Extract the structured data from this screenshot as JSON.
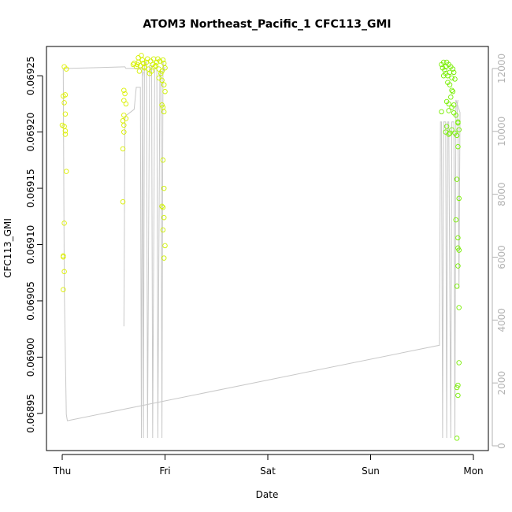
{
  "chart_data": {
    "type": "scatter",
    "title": "ATOM3 Northeast_Pacific_1 CFC113_GMI",
    "xlabel": "Date",
    "ylabel": "CFC113_GMI",
    "x_ticks": [
      "Thu",
      "Fri",
      "Sat",
      "Sun",
      "Mon"
    ],
    "xlim": [
      -0.05,
      4.1
    ],
    "ylim": [
      0.068917,
      0.069276
    ],
    "y_ticks": [
      0.06895,
      0.069,
      0.06905,
      0.0691,
      0.06915,
      0.0692,
      0.06925
    ],
    "y_tick_labels": [
      "0.06895",
      "0.06900",
      "0.06905",
      "0.06910",
      "0.06915",
      "0.06920",
      "0.06925"
    ],
    "y2lim": [
      -150,
      12700
    ],
    "y2_ticks": [
      0,
      2000,
      4000,
      6000,
      8000,
      10000,
      12000
    ],
    "colors": {
      "altitude_line": "#c8c8c8",
      "points_early": "#ddf000",
      "points_late": "#77ee00",
      "secondary_axis": "#b3b3b3"
    },
    "series": [
      {
        "kind": "points",
        "axis": "left",
        "points": [
          [
            0.02,
            0.069258
          ],
          [
            0.04,
            0.069256
          ],
          [
            0.03,
            0.069233
          ],
          [
            0.01,
            0.069232
          ],
          [
            0.02,
            0.069226
          ],
          [
            0.03,
            0.069216
          ],
          [
            0.0,
            0.069206
          ],
          [
            0.02,
            0.069205
          ],
          [
            0.03,
            0.069201
          ],
          [
            0.03,
            0.069198
          ],
          [
            0.04,
            0.069165
          ],
          [
            0.02,
            0.069119
          ],
          [
            0.01,
            0.06909
          ],
          [
            0.01,
            0.069089
          ],
          [
            0.02,
            0.069076
          ],
          [
            0.01,
            0.06906
          ],
          [
            0.6,
            0.069237
          ],
          [
            0.61,
            0.069234
          ],
          [
            0.6,
            0.069228
          ],
          [
            0.62,
            0.069225
          ],
          [
            0.6,
            0.069215
          ],
          [
            0.62,
            0.069212
          ],
          [
            0.59,
            0.06921
          ],
          [
            0.6,
            0.069206
          ],
          [
            0.6,
            0.0692
          ],
          [
            0.59,
            0.069185
          ],
          [
            0.59,
            0.069138
          ],
          [
            0.69,
            0.06926
          ],
          [
            0.7,
            0.069261
          ],
          [
            0.72,
            0.069258
          ],
          [
            0.73,
            0.06926
          ],
          [
            0.74,
            0.069262
          ],
          [
            0.76,
            0.069259
          ],
          [
            0.78,
            0.069264
          ],
          [
            0.79,
            0.069261
          ],
          [
            0.8,
            0.069258
          ],
          [
            0.82,
            0.069262
          ],
          [
            0.84,
            0.069256
          ],
          [
            0.86,
            0.069263
          ],
          [
            0.88,
            0.06926
          ],
          [
            0.9,
            0.069258
          ],
          [
            0.92,
            0.069262
          ],
          [
            0.94,
            0.069256
          ],
          [
            0.95,
            0.069263
          ],
          [
            0.97,
            0.069254
          ],
          [
            0.99,
            0.069261
          ],
          [
            1.0,
            0.069257
          ],
          [
            0.74,
            0.069266
          ],
          [
            0.77,
            0.069268
          ],
          [
            0.8,
            0.069257
          ],
          [
            0.83,
            0.069265
          ],
          [
            0.87,
            0.069254
          ],
          [
            0.91,
            0.069259
          ],
          [
            0.93,
            0.069265
          ],
          [
            0.96,
            0.069252
          ],
          [
            0.98,
            0.069264
          ],
          [
            0.75,
            0.069254
          ],
          [
            0.85,
            0.069252
          ],
          [
            0.89,
            0.069265
          ],
          [
            0.94,
            0.069248
          ],
          [
            0.97,
            0.069246
          ],
          [
            0.99,
            0.069242
          ],
          [
            1.0,
            0.069236
          ],
          [
            0.97,
            0.069224
          ],
          [
            0.98,
            0.069222
          ],
          [
            0.99,
            0.069218
          ],
          [
            0.98,
            0.069175
          ],
          [
            0.99,
            0.06915
          ],
          [
            0.97,
            0.069134
          ],
          [
            0.98,
            0.069133
          ],
          [
            0.99,
            0.069124
          ],
          [
            0.98,
            0.069113
          ],
          [
            1.0,
            0.069099
          ],
          [
            0.99,
            0.069088
          ],
          [
            3.69,
            0.06926
          ],
          [
            3.7,
            0.069257
          ],
          [
            3.71,
            0.069262
          ],
          [
            3.72,
            0.069255
          ],
          [
            3.73,
            0.069258
          ],
          [
            3.74,
            0.069262
          ],
          [
            3.75,
            0.06925
          ],
          [
            3.76,
            0.06926
          ],
          [
            3.77,
            0.069253
          ],
          [
            3.78,
            0.069258
          ],
          [
            3.79,
            0.069248
          ],
          [
            3.8,
            0.069256
          ],
          [
            3.81,
            0.069253
          ],
          [
            3.82,
            0.069247
          ],
          [
            3.71,
            0.06925
          ],
          [
            3.73,
            0.069252
          ],
          [
            3.75,
            0.069244
          ],
          [
            3.77,
            0.069242
          ],
          [
            3.79,
            0.069237
          ],
          [
            3.8,
            0.069236
          ],
          [
            3.78,
            0.069231
          ],
          [
            3.74,
            0.069227
          ],
          [
            3.76,
            0.069225
          ],
          [
            3.81,
            0.069224
          ],
          [
            3.76,
            0.069219
          ],
          [
            3.79,
            0.069222
          ],
          [
            3.81,
            0.069217
          ],
          [
            3.69,
            0.069218
          ],
          [
            3.74,
            0.069205
          ],
          [
            3.79,
            0.069202
          ],
          [
            3.83,
            0.069215
          ],
          [
            3.85,
            0.069209
          ],
          [
            3.85,
            0.069208
          ],
          [
            3.86,
            0.069202
          ],
          [
            3.73,
            0.0692
          ],
          [
            3.76,
            0.069198
          ],
          [
            3.77,
            0.069199
          ],
          [
            3.82,
            0.069199
          ],
          [
            3.84,
            0.069197
          ],
          [
            3.85,
            0.069187
          ],
          [
            3.84,
            0.069158
          ],
          [
            3.86,
            0.069141
          ],
          [
            3.83,
            0.069122
          ],
          [
            3.85,
            0.069106
          ],
          [
            3.85,
            0.069097
          ],
          [
            3.86,
            0.069095
          ],
          [
            3.85,
            0.069081
          ],
          [
            3.84,
            0.069063
          ],
          [
            3.86,
            0.069044
          ],
          [
            3.86,
            0.068995
          ],
          [
            3.85,
            0.068975
          ],
          [
            3.84,
            0.068973
          ],
          [
            3.85,
            0.068966
          ],
          [
            3.84,
            0.068928
          ]
        ]
      },
      {
        "kind": "line",
        "axis": "right",
        "points": [
          [
            0.01,
            12000
          ],
          [
            0.02,
            5000
          ],
          [
            0.04,
            1000
          ],
          [
            0.05,
            800
          ],
          [
            3.67,
            3200
          ],
          [
            3.68,
            10300
          ],
          [
            3.69,
            10300
          ],
          [
            3.7,
            250
          ],
          [
            3.71,
            10300
          ],
          [
            3.73,
            10300
          ],
          [
            3.74,
            250
          ],
          [
            3.75,
            10300
          ],
          [
            3.76,
            10300
          ],
          [
            3.78,
            250
          ],
          [
            3.79,
            10300
          ],
          [
            3.81,
            10300
          ],
          [
            3.82,
            250
          ],
          [
            3.83,
            11000
          ],
          [
            3.86,
            10700
          ],
          [
            3.87,
            10600
          ],
          [
            3.86,
            5000
          ],
          [
            3.85,
            10300
          ],
          [
            3.84,
            10800
          ],
          [
            3.85,
            11000
          ]
        ]
      },
      {
        "kind": "line",
        "axis": "right",
        "points": [
          [
            0.04,
            12000
          ],
          [
            0.6,
            12050
          ],
          [
            0.61,
            12050
          ],
          [
            0.62,
            12000
          ],
          [
            0.78,
            12000
          ],
          [
            0.79,
            250
          ],
          [
            0.8,
            12200
          ],
          [
            0.82,
            12200
          ],
          [
            0.83,
            250
          ],
          [
            0.85,
            12100
          ],
          [
            0.87,
            12100
          ],
          [
            0.88,
            250
          ],
          [
            0.9,
            12000
          ],
          [
            0.92,
            12000
          ],
          [
            0.93,
            250
          ],
          [
            0.95,
            11900
          ],
          [
            0.96,
            11900
          ],
          [
            0.97,
            250
          ],
          [
            0.98,
            12200
          ],
          [
            0.99,
            11900
          ],
          [
            1.0,
            12050
          ]
        ]
      },
      {
        "kind": "line",
        "axis": "right",
        "points": [
          [
            0.6,
            3800
          ],
          [
            0.61,
            10400
          ],
          [
            0.62,
            10500
          ],
          [
            0.66,
            10600
          ],
          [
            0.7,
            10700
          ],
          [
            0.72,
            11400
          ],
          [
            0.76,
            11400
          ],
          [
            0.77,
            250
          ],
          [
            0.78,
            11700
          ],
          [
            0.79,
            11900
          ]
        ]
      }
    ]
  }
}
